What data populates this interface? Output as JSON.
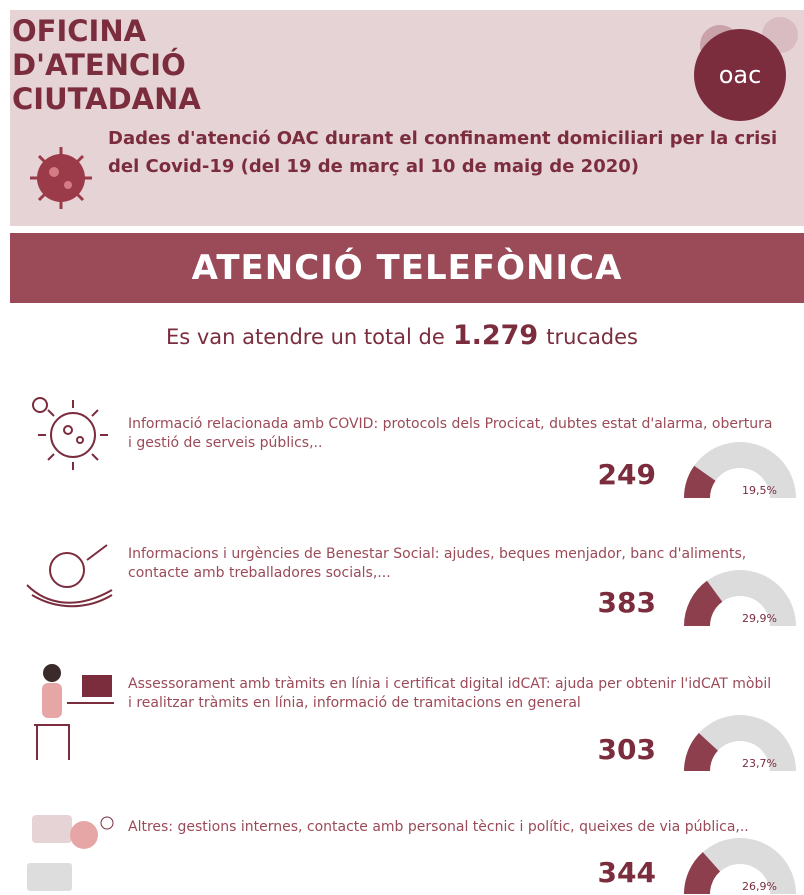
{
  "header": {
    "title_lines": [
      "OFICINA",
      "D'ATENCIÓ",
      "CIUTADANA"
    ],
    "logo": "oac",
    "subtitle": "Dades d'atenció OAC durant el confinament domiciliari per la crisi del Covid-19 (del 19 de març al 10 de maig de 2020)"
  },
  "banner": "ATENCIÓ TELEFÒNICA",
  "summary": {
    "before": "Es van atendre un total de",
    "total": "1.279",
    "after": "trucades"
  },
  "items": [
    {
      "text": "Informació relacionada amb COVID: protocols dels Procicat, dubtes estat d'alarma, obertura i gestió de serveis públics,..",
      "count": 249,
      "percent": 19.5,
      "percent_label": "19,5%"
    },
    {
      "text": "Informacions i urgències de Benestar Social: ajudes, beques menjador, banc d'aliments, contacte amb treballadores socials,...",
      "count": 383,
      "percent": 29.9,
      "percent_label": "29,9%"
    },
    {
      "text": "Assessorament amb tràmits en línia i certificat digital idCAT: ajuda per obtenir l'idCAT mòbil i realitzar tràmits en línia, informació de tramitacions en general",
      "count": 303,
      "percent": 23.7,
      "percent_label": "23,7%"
    },
    {
      "text": "Altres: gestions internes, contacte amb personal tècnic i polític, queixes de via pública,..",
      "count": 344,
      "percent": 26.9,
      "percent_label": "26,9%"
    }
  ]
}
